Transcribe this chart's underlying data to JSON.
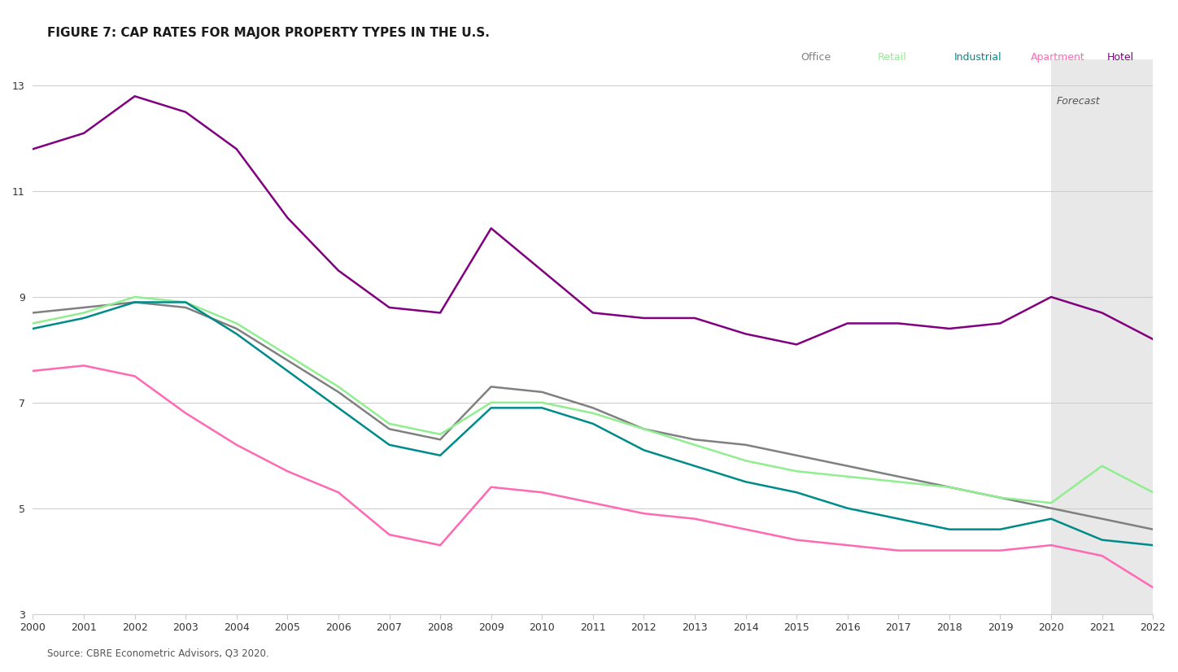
{
  "title": "FIGURE 7: CAP RATES FOR MAJOR PROPERTY TYPES IN THE U.S.",
  "source": "Source: CBRE Econometric Advisors, Q3 2020.",
  "forecast_label": "Forecast",
  "forecast_start": 2020,
  "xlim": [
    2000,
    2022
  ],
  "ylim": [
    3,
    13.5
  ],
  "yticks": [
    3,
    5,
    7,
    9,
    11,
    13
  ],
  "xticks": [
    2000,
    2001,
    2002,
    2003,
    2004,
    2005,
    2006,
    2007,
    2008,
    2009,
    2010,
    2011,
    2012,
    2013,
    2014,
    2015,
    2016,
    2017,
    2018,
    2019,
    2020,
    2021,
    2022
  ],
  "legend_labels": [
    "Office",
    "Retail",
    "Industrial",
    "Apartment",
    "Hotel"
  ],
  "legend_colors": [
    "#808080",
    "#90EE90",
    "#008B8B",
    "#FF69B4",
    "#800080"
  ],
  "series": {
    "Office": {
      "color": "#808080",
      "x": [
        2000,
        2001,
        2002,
        2003,
        2004,
        2005,
        2006,
        2007,
        2008,
        2009,
        2010,
        2011,
        2012,
        2013,
        2014,
        2015,
        2016,
        2017,
        2018,
        2019,
        2020,
        2021,
        2022
      ],
      "y": [
        8.7,
        8.8,
        8.9,
        8.8,
        8.4,
        7.8,
        7.2,
        6.5,
        6.3,
        7.3,
        7.2,
        6.9,
        6.5,
        6.3,
        6.2,
        6.0,
        5.8,
        5.6,
        5.4,
        5.2,
        5.0,
        4.8,
        4.6
      ]
    },
    "Retail": {
      "color": "#90EE90",
      "x": [
        2000,
        2001,
        2002,
        2003,
        2004,
        2005,
        2006,
        2007,
        2008,
        2009,
        2010,
        2011,
        2012,
        2013,
        2014,
        2015,
        2016,
        2017,
        2018,
        2019,
        2020,
        2021,
        2022
      ],
      "y": [
        8.5,
        8.7,
        9.0,
        8.9,
        8.5,
        7.9,
        7.3,
        6.6,
        6.4,
        7.0,
        7.0,
        6.8,
        6.5,
        6.2,
        5.9,
        5.7,
        5.6,
        5.5,
        5.4,
        5.2,
        5.1,
        5.8,
        5.3
      ]
    },
    "Industrial": {
      "color": "#008B8B",
      "x": [
        2000,
        2001,
        2002,
        2003,
        2004,
        2005,
        2006,
        2007,
        2008,
        2009,
        2010,
        2011,
        2012,
        2013,
        2014,
        2015,
        2016,
        2017,
        2018,
        2019,
        2020,
        2021,
        2022
      ],
      "y": [
        8.4,
        8.6,
        8.9,
        8.9,
        8.3,
        7.6,
        6.9,
        6.2,
        6.0,
        6.9,
        6.9,
        6.6,
        6.1,
        5.8,
        5.5,
        5.3,
        5.0,
        4.8,
        4.6,
        4.6,
        4.8,
        4.4,
        4.3
      ]
    },
    "Apartment": {
      "color": "#FF69B4",
      "x": [
        2000,
        2001,
        2002,
        2003,
        2004,
        2005,
        2006,
        2007,
        2008,
        2009,
        2010,
        2011,
        2012,
        2013,
        2014,
        2015,
        2016,
        2017,
        2018,
        2019,
        2020,
        2021,
        2022
      ],
      "y": [
        7.6,
        7.7,
        7.5,
        6.8,
        6.2,
        5.7,
        5.3,
        4.5,
        4.3,
        5.4,
        5.3,
        5.1,
        4.9,
        4.8,
        4.6,
        4.4,
        4.3,
        4.2,
        4.2,
        4.2,
        4.3,
        4.1,
        3.5
      ]
    },
    "Hotel": {
      "color": "#800080",
      "x": [
        2000,
        2001,
        2002,
        2003,
        2004,
        2005,
        2006,
        2007,
        2008,
        2009,
        2010,
        2011,
        2012,
        2013,
        2014,
        2015,
        2016,
        2017,
        2018,
        2019,
        2020,
        2021,
        2022
      ],
      "y": [
        11.8,
        12.1,
        12.8,
        12.5,
        11.8,
        10.5,
        9.5,
        8.8,
        8.7,
        10.3,
        9.5,
        8.7,
        8.6,
        8.6,
        8.3,
        8.1,
        8.5,
        8.5,
        8.4,
        8.5,
        9.0,
        8.7,
        8.2
      ]
    }
  },
  "background_color": "#ffffff",
  "forecast_bg_color": "#e8e8e8"
}
